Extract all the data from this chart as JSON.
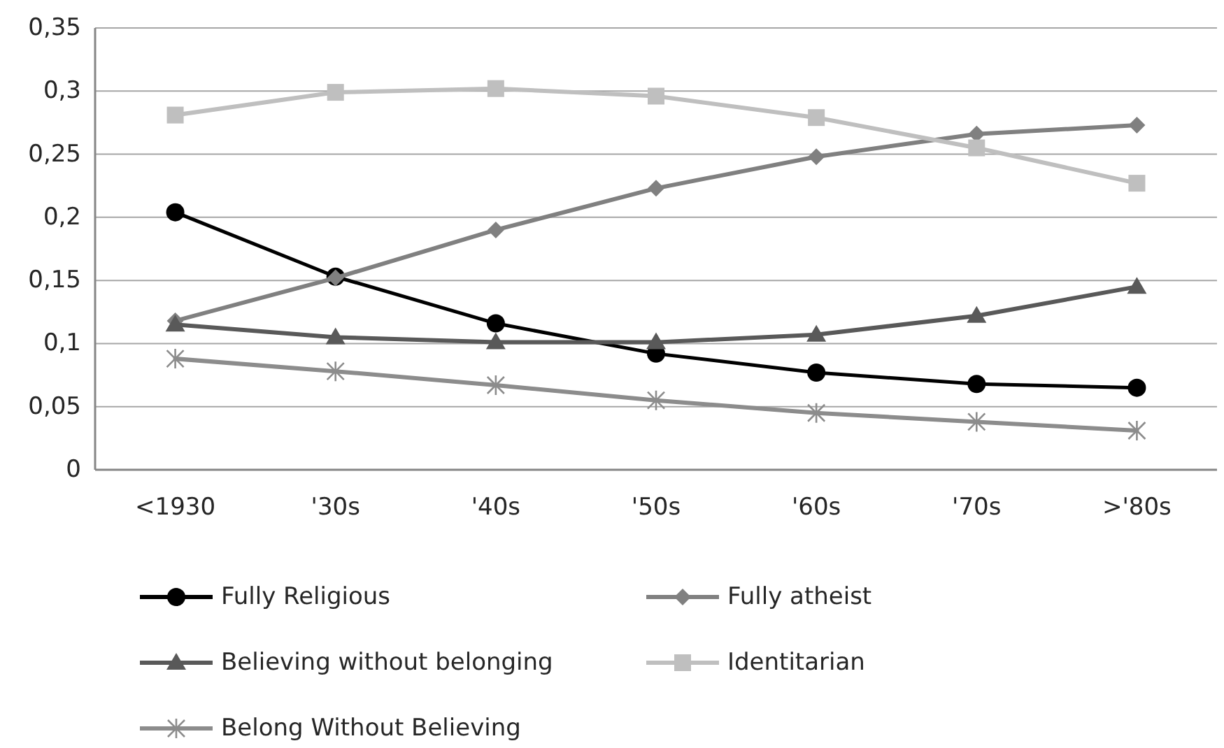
{
  "chart_data": {
    "type": "line",
    "categories": [
      "<1930",
      "'30s",
      "'40s",
      "'50s",
      "'60s",
      "'70s",
      ">'80s"
    ],
    "ylim": [
      0,
      0.35
    ],
    "yticks": [
      {
        "value": 0,
        "label": "0"
      },
      {
        "value": 0.05,
        "label": "0,05"
      },
      {
        "value": 0.1,
        "label": "0,1"
      },
      {
        "value": 0.15,
        "label": "0,15"
      },
      {
        "value": 0.2,
        "label": "0,2"
      },
      {
        "value": 0.25,
        "label": "0,25"
      },
      {
        "value": 0.3,
        "label": "0,3"
      },
      {
        "value": 0.35,
        "label": "0,35"
      }
    ],
    "grid": "y",
    "legend": "bottom",
    "series": [
      {
        "name": "Fully Religious",
        "color": "#000000",
        "marker": "circle",
        "values": [
          0.204,
          0.153,
          0.116,
          0.092,
          0.077,
          0.068,
          0.065
        ]
      },
      {
        "name": "Fully atheist",
        "color": "#808080",
        "marker": "diamond",
        "values": [
          0.118,
          0.152,
          0.19,
          0.223,
          0.248,
          0.266,
          0.273
        ]
      },
      {
        "name": "Believing without belonging",
        "color": "#595959",
        "marker": "triangle",
        "values": [
          0.115,
          0.105,
          0.101,
          0.101,
          0.107,
          0.122,
          0.145
        ]
      },
      {
        "name": "Identitarian",
        "color": "#bfbfbf",
        "marker": "square",
        "values": [
          0.281,
          0.299,
          0.302,
          0.296,
          0.279,
          0.255,
          0.227
        ]
      },
      {
        "name": "Belong Without Believing",
        "color": "#8c8c8c",
        "marker": "cross",
        "values": [
          0.088,
          0.078,
          0.067,
          0.055,
          0.045,
          0.038,
          0.031
        ]
      }
    ]
  }
}
